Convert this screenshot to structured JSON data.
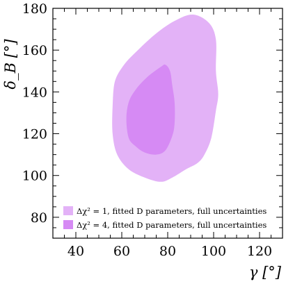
{
  "chart_data": {
    "type": "area",
    "xlabel": "γ [°]",
    "ylabel": "δ_B [°]",
    "xlim": [
      30,
      130
    ],
    "ylim": [
      70,
      180
    ],
    "x_ticks": [
      40,
      60,
      80,
      100,
      120
    ],
    "y_ticks": [
      80,
      100,
      120,
      140,
      160,
      180
    ],
    "x_minor_step": 5,
    "y_minor_step": 5,
    "grid": false,
    "legend_position": "bottom-left",
    "series": [
      {
        "name": "Δχ² = 1, fitted D parameters, full uncertainties",
        "color": "#e3b2f7",
        "points": [
          [
            91,
            177
          ],
          [
            98,
            173
          ],
          [
            101,
            165
          ],
          [
            101,
            150
          ],
          [
            102,
            139
          ],
          [
            101,
            131
          ],
          [
            99,
            118
          ],
          [
            96,
            110
          ],
          [
            93,
            106
          ],
          [
            88,
            103
          ],
          [
            82,
            99
          ],
          [
            77,
            97
          ],
          [
            70,
            99
          ],
          [
            63,
            103
          ],
          [
            58,
            110
          ],
          [
            56,
            120
          ],
          [
            56,
            133
          ],
          [
            57,
            145
          ],
          [
            61,
            153
          ],
          [
            67,
            160
          ],
          [
            75,
            168
          ],
          [
            83,
            174
          ]
        ]
      },
      {
        "name": "Δχ² = 4, fitted D parameters, full uncertainties",
        "color": "#d68af4",
        "points": [
          [
            77,
            152
          ],
          [
            79,
            153
          ],
          [
            81,
            150
          ],
          [
            82,
            143
          ],
          [
            83,
            135
          ],
          [
            83,
            125
          ],
          [
            82,
            119
          ],
          [
            79,
            112
          ],
          [
            75,
            110
          ],
          [
            70,
            111
          ],
          [
            66,
            114
          ],
          [
            63,
            118
          ],
          [
            62,
            127
          ],
          [
            63,
            135
          ],
          [
            66,
            141
          ],
          [
            71,
            147
          ]
        ]
      }
    ]
  }
}
